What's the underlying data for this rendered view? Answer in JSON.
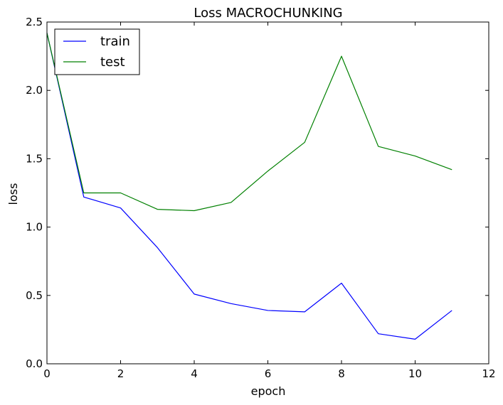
{
  "chart_data": {
    "type": "line",
    "title": "Loss MACROCHUNKING",
    "xlabel": "epoch",
    "ylabel": "loss",
    "xlim": [
      0,
      12
    ],
    "ylim": [
      0.0,
      2.5
    ],
    "xticks": [
      "0",
      "2",
      "4",
      "6",
      "8",
      "10",
      "12"
    ],
    "yticks": [
      "0.0",
      "0.5",
      "1.0",
      "1.5",
      "2.0",
      "2.5"
    ],
    "grid": false,
    "legend_position": "upper-left",
    "x": [
      0,
      1,
      2,
      3,
      4,
      5,
      6,
      7,
      8,
      9,
      10,
      11
    ],
    "series": [
      {
        "name": "train",
        "color": "#0000ff",
        "values": [
          2.42,
          1.22,
          1.14,
          0.85,
          0.51,
          0.44,
          0.39,
          0.38,
          0.59,
          0.22,
          0.18,
          0.39
        ]
      },
      {
        "name": "test",
        "color": "#008000",
        "values": [
          2.42,
          1.25,
          1.25,
          1.13,
          1.12,
          1.18,
          1.41,
          1.62,
          2.25,
          1.59,
          1.52,
          1.42
        ]
      }
    ]
  }
}
